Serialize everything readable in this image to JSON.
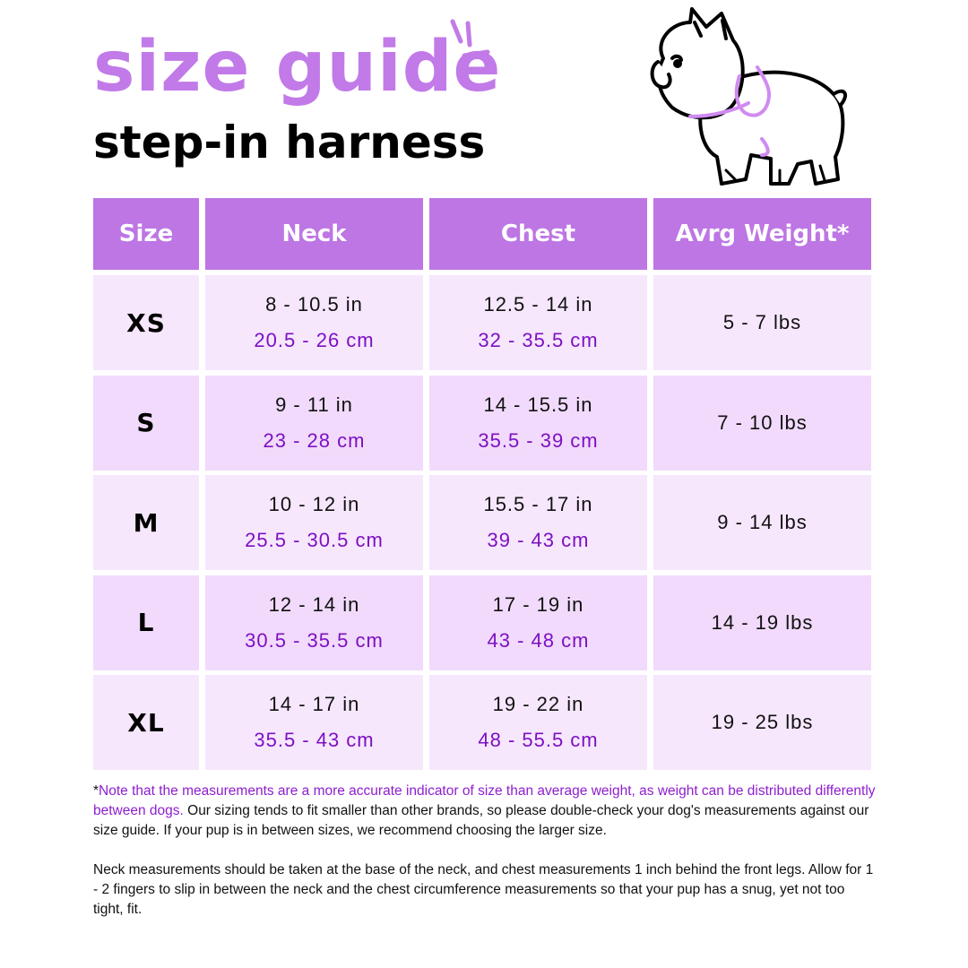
{
  "header": {
    "title": "size guide",
    "subtitle": "step-in harness"
  },
  "colors": {
    "header_bg": "#bd76e4",
    "row_light": "#f6e7fd",
    "row_dark": "#f1dafb",
    "accent_text": "#7d10c2",
    "title": "#c27ae8"
  },
  "illustration": {
    "icon": "french-bulldog-with-harness"
  },
  "table": {
    "columns": [
      "Size",
      "Neck",
      "Chest",
      "Avrg Weight*"
    ],
    "rows": [
      {
        "size": "XS",
        "neck_in": "8 - 10.5 in",
        "neck_cm": "20.5 - 26 cm",
        "chest_in": "12.5 - 14 in",
        "chest_cm": "32 - 35.5 cm",
        "weight": "5 - 7 lbs"
      },
      {
        "size": "S",
        "neck_in": "9 - 11 in",
        "neck_cm": "23 - 28 cm",
        "chest_in": "14 - 15.5 in",
        "chest_cm": "35.5 - 39 cm",
        "weight": "7 - 10 lbs"
      },
      {
        "size": "M",
        "neck_in": "10 - 12 in",
        "neck_cm": "25.5 - 30.5 cm",
        "chest_in": "15.5 - 17 in",
        "chest_cm": "39 - 43 cm",
        "weight": "9 - 14 lbs"
      },
      {
        "size": "L",
        "neck_in": "12 - 14 in",
        "neck_cm": "30.5 - 35.5 cm",
        "chest_in": "17 - 19 in",
        "chest_cm": "43 - 48 cm",
        "weight": "14 - 19 lbs"
      },
      {
        "size": "XL",
        "neck_in": "14 - 17 in",
        "neck_cm": "35.5 - 43 cm",
        "chest_in": "19 - 22 in",
        "chest_cm": "48 - 55.5 cm",
        "weight": "19 - 25 lbs"
      }
    ]
  },
  "notes": {
    "asterisk": "*",
    "highlight": "Note that the measurements are a more accurate indicator of size than average weight, as weight can be distributed differently between dogs.",
    "para1_rest": " Our sizing tends to fit smaller than other brands, so please double-check your dog's measurements against our size guide. If your pup is in between sizes, we recommend choosing the larger size.",
    "para2": "Neck measurements should be taken at the base of the neck, and chest measurements 1 inch behind the front legs. Allow for 1 - 2 fingers to slip in between the neck and the chest circumference measurements so that your pup has a snug, yet not too tight, fit."
  }
}
